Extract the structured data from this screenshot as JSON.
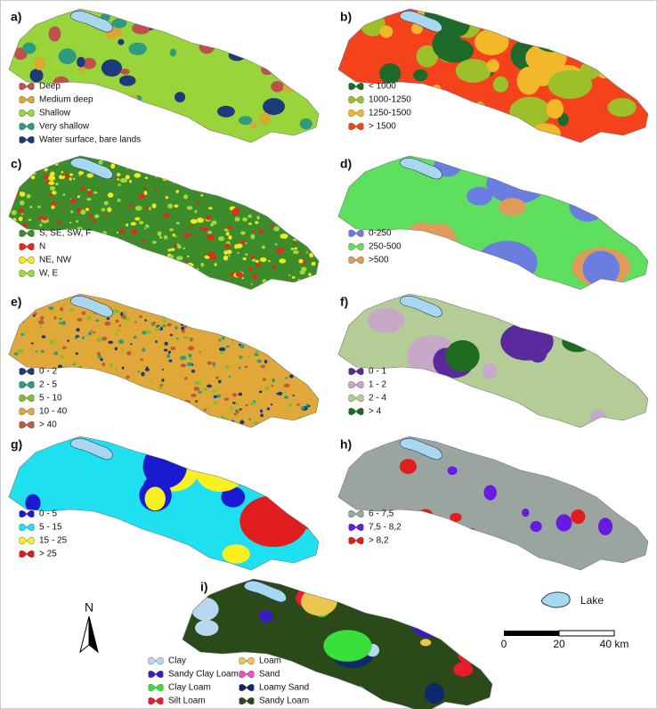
{
  "panels": [
    {
      "label": "a)",
      "legend": [
        {
          "label": "Deep",
          "color": "#c0504d"
        },
        {
          "label": "Medium deep",
          "color": "#d9a830"
        },
        {
          "label": "Shallow",
          "color": "#98d43a"
        },
        {
          "label": "Very shallow",
          "color": "#2c9c7c"
        },
        {
          "label": "Water surface, bare lands",
          "color": "#1d3a7a"
        }
      ]
    },
    {
      "label": "b)",
      "legend": [
        {
          "label": "< 1000",
          "color": "#1e6a2a"
        },
        {
          "label": "1000-1250",
          "color": "#9cbf2a"
        },
        {
          "label": "1250-1500",
          "color": "#f2b82a"
        },
        {
          "label": "> 1500",
          "color": "#f4421c"
        }
      ]
    },
    {
      "label": "c)",
      "legend": [
        {
          "label": "S, SE, SW, F",
          "color": "#3c8c2c"
        },
        {
          "label": "N",
          "color": "#e8281c"
        },
        {
          "label": "NE, NW",
          "color": "#f8e81c"
        },
        {
          "label": "W, E",
          "color": "#a0d838"
        }
      ]
    },
    {
      "label": "d)",
      "legend": [
        {
          "label": "0-250",
          "color": "#6a7ee0"
        },
        {
          "label": "250-500",
          "color": "#5ee05e"
        },
        {
          "label": ">500",
          "color": "#e09a5a"
        }
      ]
    },
    {
      "label": "e)",
      "legend": [
        {
          "label": "0 - 2",
          "color": "#1d3a7a"
        },
        {
          "label": "2 - 5",
          "color": "#2c9c7c"
        },
        {
          "label": "5 - 10",
          "color": "#7cc030"
        },
        {
          "label": "10 - 40",
          "color": "#e0a838"
        },
        {
          "label": "> 40",
          "color": "#c05a3c"
        }
      ]
    },
    {
      "label": "f)",
      "legend": [
        {
          "label": "0 - 1",
          "color": "#5a2a9c"
        },
        {
          "label": "1 - 2",
          "color": "#c8a8c8"
        },
        {
          "label": "2 - 4",
          "color": "#b4cc96"
        },
        {
          "label": "> 4",
          "color": "#1e6a1e"
        }
      ]
    },
    {
      "label": "g)",
      "legend": [
        {
          "label": "0 - 5",
          "color": "#1a1ad0"
        },
        {
          "label": "5 - 15",
          "color": "#1ee0f0"
        },
        {
          "label": "15 - 25",
          "color": "#f8f020"
        },
        {
          "label": "> 25",
          "color": "#e01c1c"
        }
      ]
    },
    {
      "label": "h)",
      "legend": [
        {
          "label": "6 - 7,5",
          "color": "#9aa5a0"
        },
        {
          "label": "7,5 - 8,2",
          "color": "#6a1ae0"
        },
        {
          "label": "> 8,2",
          "color": "#e01c1c"
        }
      ]
    },
    {
      "label": "i)",
      "legend": [
        {
          "label": "Clay",
          "color": "#b8d8f0"
        },
        {
          "label": "Sandy Clay Loam",
          "color": "#3a1ac8"
        },
        {
          "label": "Clay Loam",
          "color": "#3ae03a"
        },
        {
          "label": "Silt Loam",
          "color": "#e81c2c"
        },
        {
          "label": "Loam",
          "color": "#ecc450"
        },
        {
          "label": "Sand",
          "color": "#f050c0"
        },
        {
          "label": "Loamy Sand",
          "color": "#0c2a6a"
        },
        {
          "label": "Sandy Loam",
          "color": "#2a4a1a"
        }
      ]
    }
  ],
  "north": "N",
  "lake": "Lake",
  "scale": [
    "0",
    "20",
    "40 km"
  ]
}
